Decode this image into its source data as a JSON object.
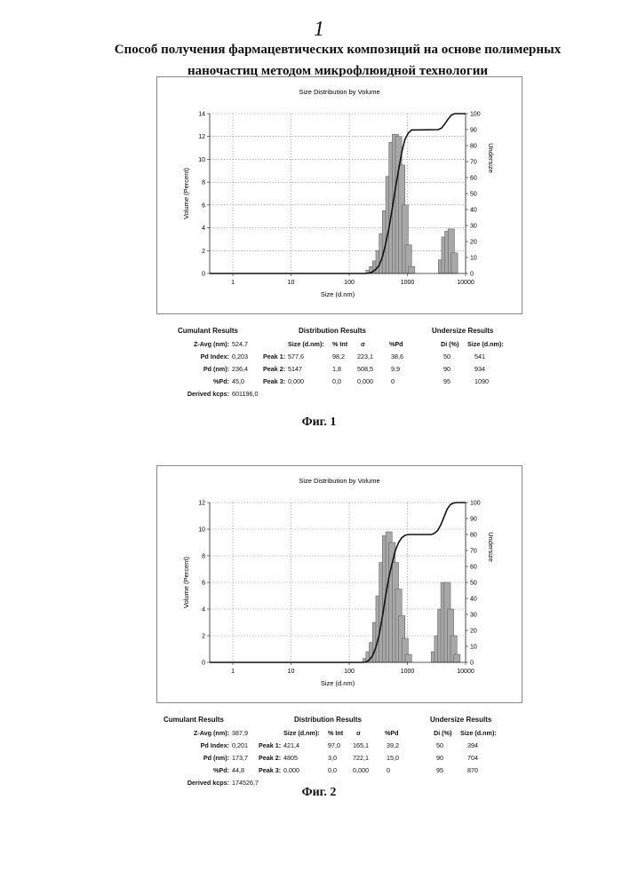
{
  "page_number": "1",
  "title_line1": "Способ получения фармацевтических композиций на основе полимерных",
  "title_line2": "наночастиц методом микрофлюидной технологии",
  "figures": [
    {
      "caption": "Фиг. 1",
      "cumulant": {
        "title": "Cumulant Results",
        "rows": [
          {
            "label": "Z-Avg (nm):",
            "value": "524,7"
          },
          {
            "label": "Pd Index:",
            "value": "0,203"
          },
          {
            "label": "Pd (nm):",
            "value": "236,4"
          },
          {
            "label": "%Pd:",
            "value": "45,0"
          },
          {
            "label": "Derived kcps:",
            "value": "601196,0"
          }
        ]
      },
      "distribution": {
        "title": "Distribution Results",
        "headers": [
          "Size (d.nm):",
          "% Int",
          "σ",
          "%Pd"
        ],
        "rows": [
          {
            "label": "Peak 1:",
            "cells": [
              "577,6",
              "98,2",
              "223,1",
              "38,6"
            ]
          },
          {
            "label": "Peak 2:",
            "cells": [
              "5147",
              "1,8",
              "508,5",
              "9,9"
            ]
          },
          {
            "label": "Peak 3:",
            "cells": [
              "0,000",
              "0,0",
              "0,000",
              "0"
            ]
          }
        ]
      },
      "undersize": {
        "title": "Undersize Results",
        "headers": [
          "Di (%)",
          "Size (d.nm):"
        ],
        "rows": [
          {
            "cells": [
              "50",
              "541"
            ]
          },
          {
            "cells": [
              "90",
              "934"
            ]
          },
          {
            "cells": [
              "95",
              "1090"
            ]
          }
        ]
      }
    },
    {
      "caption": "Фиг. 2",
      "cumulant": {
        "title": "Cumulant Results",
        "rows": [
          {
            "label": "Z-Avg (nm):",
            "value": "387,9"
          },
          {
            "label": "Pd Index:",
            "value": "0,201"
          },
          {
            "label": "Pd (nm):",
            "value": "173,7"
          },
          {
            "label": "%Pd:",
            "value": "44,8"
          },
          {
            "label": "Derived kcps:",
            "value": "174526,7"
          }
        ]
      },
      "distribution": {
        "title": "Distribution Results",
        "headers": [
          "Size (d.nm):",
          "% Int",
          "σ",
          "%Pd"
        ],
        "rows": [
          {
            "label": "Peak 1:",
            "cells": [
              "421,4",
              "97,0",
              "165,1",
              "39,2"
            ]
          },
          {
            "label": "Peak 2:",
            "cells": [
              "4805",
              "3,0",
              "722,1",
              "15,0"
            ]
          },
          {
            "label": "Peak 3:",
            "cells": [
              "0,000",
              "0,0",
              "0,000",
              "0"
            ]
          }
        ]
      },
      "undersize": {
        "title": "Undersize Results",
        "headers": [
          "Di (%)",
          "Size (d.nm):"
        ],
        "rows": [
          {
            "cells": [
              "50",
              "394"
            ]
          },
          {
            "cells": [
              "90",
              "704"
            ]
          },
          {
            "cells": [
              "95",
              "870"
            ]
          }
        ]
      }
    }
  ],
  "chart_data": [
    {
      "type": "bar",
      "title": "Size Distribution by Volume",
      "xlabel": "Size (d.nm)",
      "ylabel": "Volume (Percent)",
      "y2label": "Undersize",
      "x_scale": "log",
      "xlim": [
        0.4,
        10000
      ],
      "ylim": [
        0,
        14
      ],
      "y2lim": [
        0,
        100
      ],
      "x_ticks": [
        1,
        10,
        100,
        1000,
        10000
      ],
      "y_ticks": [
        0,
        2,
        4,
        6,
        8,
        10,
        12,
        14
      ],
      "y2_ticks": [
        0,
        10,
        20,
        30,
        40,
        50,
        60,
        70,
        80,
        90,
        100
      ],
      "grid": true,
      "bars": [
        {
          "x": 220,
          "y": 0.3
        },
        {
          "x": 250,
          "y": 0.6
        },
        {
          "x": 285,
          "y": 1.1
        },
        {
          "x": 325,
          "y": 2.0
        },
        {
          "x": 370,
          "y": 3.5
        },
        {
          "x": 420,
          "y": 5.5
        },
        {
          "x": 480,
          "y": 8.5
        },
        {
          "x": 545,
          "y": 11.5
        },
        {
          "x": 620,
          "y": 12.2
        },
        {
          "x": 705,
          "y": 12.0
        },
        {
          "x": 800,
          "y": 9.5
        },
        {
          "x": 910,
          "y": 6.0
        },
        {
          "x": 1040,
          "y": 2.5
        },
        {
          "x": 1180,
          "y": 0.6
        },
        {
          "x": 3850,
          "y": 1.2
        },
        {
          "x": 4380,
          "y": 3.2
        },
        {
          "x": 4980,
          "y": 3.7
        },
        {
          "x": 5660,
          "y": 3.9
        },
        {
          "x": 6440,
          "y": 1.8
        }
      ],
      "undersize_curve": [
        {
          "x": 0.4,
          "y": 0
        },
        {
          "x": 190,
          "y": 0
        },
        {
          "x": 220,
          "y": 0.3
        },
        {
          "x": 250,
          "y": 1
        },
        {
          "x": 285,
          "y": 2.5
        },
        {
          "x": 325,
          "y": 5
        },
        {
          "x": 370,
          "y": 10
        },
        {
          "x": 420,
          "y": 18
        },
        {
          "x": 480,
          "y": 28
        },
        {
          "x": 545,
          "y": 40
        },
        {
          "x": 620,
          "y": 53
        },
        {
          "x": 705,
          "y": 65
        },
        {
          "x": 800,
          "y": 76
        },
        {
          "x": 910,
          "y": 84
        },
        {
          "x": 1040,
          "y": 88
        },
        {
          "x": 1180,
          "y": 89.8
        },
        {
          "x": 3400,
          "y": 90
        },
        {
          "x": 3850,
          "y": 91
        },
        {
          "x": 4380,
          "y": 93.5
        },
        {
          "x": 4980,
          "y": 96.5
        },
        {
          "x": 5660,
          "y": 99
        },
        {
          "x": 6440,
          "y": 100
        },
        {
          "x": 10000,
          "y": 100
        }
      ]
    },
    {
      "type": "bar",
      "title": "Size Distribution by Volume",
      "xlabel": "Size (d.nm)",
      "ylabel": "Volume (Percent)",
      "y2label": "Undersize",
      "x_scale": "log",
      "xlim": [
        0.4,
        10000
      ],
      "ylim": [
        0,
        12
      ],
      "y2lim": [
        0,
        100
      ],
      "x_ticks": [
        1,
        10,
        100,
        1000,
        10000
      ],
      "y_ticks": [
        0,
        2,
        4,
        6,
        8,
        10,
        12
      ],
      "y2_ticks": [
        0,
        10,
        20,
        30,
        40,
        50,
        60,
        70,
        80,
        90,
        100
      ],
      "grid": true,
      "bars": [
        {
          "x": 195,
          "y": 0.3
        },
        {
          "x": 220,
          "y": 0.8
        },
        {
          "x": 250,
          "y": 1.5
        },
        {
          "x": 285,
          "y": 3.0
        },
        {
          "x": 325,
          "y": 5.0
        },
        {
          "x": 370,
          "y": 7.5
        },
        {
          "x": 420,
          "y": 9.5
        },
        {
          "x": 480,
          "y": 9.8
        },
        {
          "x": 545,
          "y": 9.0
        },
        {
          "x": 620,
          "y": 7.5
        },
        {
          "x": 705,
          "y": 5.5
        },
        {
          "x": 800,
          "y": 3.5
        },
        {
          "x": 910,
          "y": 1.8
        },
        {
          "x": 1040,
          "y": 0.6
        },
        {
          "x": 2900,
          "y": 0.8
        },
        {
          "x": 3300,
          "y": 2.0
        },
        {
          "x": 3750,
          "y": 4.0
        },
        {
          "x": 4250,
          "y": 6.0
        },
        {
          "x": 4850,
          "y": 6.0
        },
        {
          "x": 5500,
          "y": 4.0
        },
        {
          "x": 6250,
          "y": 2.0
        },
        {
          "x": 7100,
          "y": 0.6
        }
      ],
      "undersize_curve": [
        {
          "x": 0.4,
          "y": 0
        },
        {
          "x": 170,
          "y": 0
        },
        {
          "x": 195,
          "y": 0.3
        },
        {
          "x": 220,
          "y": 1.5
        },
        {
          "x": 250,
          "y": 4
        },
        {
          "x": 285,
          "y": 9
        },
        {
          "x": 325,
          "y": 17
        },
        {
          "x": 370,
          "y": 28
        },
        {
          "x": 420,
          "y": 41
        },
        {
          "x": 480,
          "y": 53
        },
        {
          "x": 545,
          "y": 62
        },
        {
          "x": 620,
          "y": 70
        },
        {
          "x": 705,
          "y": 75
        },
        {
          "x": 800,
          "y": 78
        },
        {
          "x": 910,
          "y": 79.5
        },
        {
          "x": 1040,
          "y": 80
        },
        {
          "x": 2600,
          "y": 80
        },
        {
          "x": 2900,
          "y": 80.8
        },
        {
          "x": 3300,
          "y": 82.5
        },
        {
          "x": 3750,
          "y": 86
        },
        {
          "x": 4250,
          "y": 91
        },
        {
          "x": 4850,
          "y": 96
        },
        {
          "x": 5500,
          "y": 98.8
        },
        {
          "x": 6250,
          "y": 99.7
        },
        {
          "x": 7100,
          "y": 100
        },
        {
          "x": 10000,
          "y": 100
        }
      ]
    }
  ]
}
